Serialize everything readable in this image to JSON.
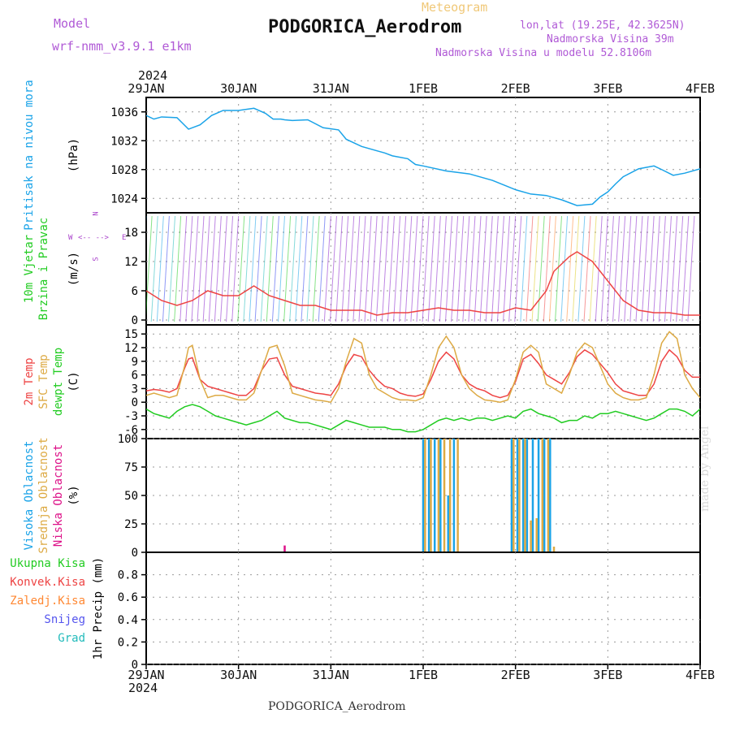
{
  "header": {
    "model_label": "Model",
    "model_name": "wrf-nmm_v3.9.1 e1km",
    "product": "Meteogram",
    "station": "PODGORICA_Aerodrom",
    "lonlat": "lon,lat (19.25E, 42.3625N)",
    "elevation": "Nadmorska Visina 39m",
    "model_elevation": "Nadmorska Visina u modelu 52.8106m",
    "year": "2024",
    "footer_station": "PODGORICA_Aerodrom",
    "credit": "made by Angel"
  },
  "colors": {
    "pressure": "#1aa3e8",
    "temp2m": "#ee4444",
    "sfc_temp": "#ddaa44",
    "dewpt": "#22cc22",
    "cloud_high": "#1aa3e8",
    "cloud_mid": "#ddaa44",
    "cloud_low": "#dd1188",
    "wind_label": "#22cc22",
    "compass": "#aa44cc"
  },
  "compass": {
    "n": "N",
    "w": "W",
    "e": "E",
    "s": "S"
  },
  "chart_data": [
    {
      "type": "line",
      "panel": "pressure",
      "ylabel_lines": [
        "Pritisak na nivou mora"
      ],
      "unit": "(hPa)",
      "x_ticks": [
        "29JAN",
        "30JAN",
        "31JAN",
        "1FEB",
        "2FEB",
        "3FEB",
        "4FEB"
      ],
      "x_range_hours": [
        0,
        144
      ],
      "ylim": [
        1022,
        1038
      ],
      "yticks": [
        1024,
        1028,
        1032,
        1036
      ],
      "series": [
        {
          "x": [
            0,
            2,
            4,
            8,
            11,
            14,
            17,
            20,
            24,
            28,
            31,
            33,
            35,
            36,
            38,
            42,
            46,
            50,
            52,
            56,
            60,
            62,
            64,
            68,
            70,
            72,
            78,
            84,
            90,
            96,
            100,
            104,
            108,
            112,
            116,
            118,
            120,
            122,
            124,
            128,
            132,
            134,
            137,
            140,
            144
          ],
          "y": [
            1035.5,
            1035.0,
            1035.3,
            1035.2,
            1033.6,
            1034.2,
            1035.5,
            1036.2,
            1036.2,
            1036.5,
            1035.8,
            1035.0,
            1035.0,
            1034.9,
            1034.8,
            1034.9,
            1033.8,
            1033.5,
            1032.2,
            1031.2,
            1030.6,
            1030.3,
            1029.9,
            1029.5,
            1028.7,
            1028.5,
            1027.8,
            1027.4,
            1026.5,
            1025.2,
            1024.6,
            1024.4,
            1023.8,
            1023.0,
            1023.2,
            1024.2,
            1024.9,
            1026.0,
            1027.0,
            1028.1,
            1028.5,
            1028.0,
            1027.2,
            1027.5,
            1028.1
          ]
        }
      ]
    },
    {
      "type": "line",
      "panel": "wind",
      "ylabel_lines": [
        "10m Vjetar",
        "Brzina i Pravac"
      ],
      "unit": "(m/s)",
      "ylim": [
        -1,
        22
      ],
      "yticks": [
        0,
        6,
        12,
        18
      ],
      "series": [
        {
          "name": "wind speed",
          "x": [
            0,
            4,
            8,
            12,
            16,
            20,
            24,
            28,
            32,
            36,
            40,
            44,
            48,
            52,
            56,
            60,
            64,
            68,
            72,
            76,
            80,
            84,
            88,
            92,
            96,
            100,
            104,
            106,
            110,
            112,
            116,
            120,
            124,
            128,
            132,
            136,
            140,
            144
          ],
          "y": [
            6,
            4,
            3,
            4,
            6,
            5,
            5,
            7,
            5,
            4,
            3,
            3,
            2,
            2,
            2,
            1,
            1.5,
            1.5,
            2,
            2.5,
            2,
            2,
            1.5,
            1.5,
            2.5,
            2,
            6,
            10,
            13,
            14,
            12,
            8,
            4,
            2,
            1.5,
            1.5,
            1,
            1
          ]
        }
      ]
    },
    {
      "type": "line",
      "panel": "temperature",
      "ylabel_lines": [
        "2m Temp",
        "SFC Temp",
        "dewpt Temp"
      ],
      "unit": "(C)",
      "ylim": [
        -8,
        17
      ],
      "yticks": [
        -6,
        -3,
        0,
        3,
        6,
        9,
        12,
        15
      ],
      "series": [
        {
          "name": "2m Temp",
          "x": [
            0,
            2,
            4,
            6,
            8,
            10,
            11,
            12,
            14,
            16,
            18,
            20,
            22,
            24,
            26,
            28,
            30,
            32,
            34,
            36,
            38,
            40,
            42,
            44,
            46,
            48,
            50,
            52,
            54,
            56,
            58,
            60,
            62,
            64,
            66,
            68,
            70,
            72,
            74,
            76,
            78,
            80,
            82,
            84,
            86,
            88,
            90,
            92,
            94,
            96,
            98,
            100,
            102,
            104,
            106,
            108,
            110,
            112,
            114,
            116,
            118,
            120,
            122,
            124,
            126,
            128,
            130,
            132,
            134,
            136,
            138,
            140,
            142,
            144
          ],
          "y": [
            2.5,
            2.8,
            2.6,
            2.2,
            3.0,
            7.5,
            9.5,
            9.8,
            5.0,
            3.5,
            3.0,
            2.5,
            2.0,
            1.5,
            1.5,
            3.0,
            7.0,
            9.5,
            9.8,
            6.0,
            3.5,
            3.0,
            2.5,
            2.0,
            1.8,
            1.5,
            4.0,
            8.0,
            10.5,
            10.0,
            7.0,
            5.0,
            3.5,
            3.0,
            2.0,
            1.5,
            1.3,
            1.8,
            5.0,
            9.0,
            11.0,
            9.5,
            6.0,
            4.0,
            3.0,
            2.5,
            1.5,
            1.0,
            1.5,
            4.5,
            9.5,
            10.5,
            8.5,
            6.0,
            5.0,
            4.0,
            6.5,
            10.0,
            11.5,
            10.5,
            8.5,
            6.5,
            4.0,
            2.5,
            2.0,
            1.5,
            1.5,
            4.0,
            9.0,
            11.5,
            10.0,
            7.0,
            5.5,
            5.5
          ]
        },
        {
          "name": "SFC Temp",
          "x": [
            0,
            2,
            4,
            6,
            8,
            10,
            11,
            12,
            14,
            16,
            18,
            20,
            22,
            24,
            26,
            28,
            30,
            32,
            34,
            36,
            38,
            40,
            42,
            44,
            46,
            48,
            50,
            52,
            54,
            56,
            58,
            60,
            62,
            64,
            66,
            68,
            70,
            72,
            74,
            76,
            78,
            80,
            82,
            84,
            86,
            88,
            90,
            92,
            94,
            96,
            98,
            100,
            102,
            104,
            106,
            108,
            110,
            112,
            114,
            116,
            118,
            120,
            122,
            124,
            126,
            128,
            130,
            132,
            134,
            136,
            138,
            140,
            142,
            144
          ],
          "y": [
            1.5,
            2.0,
            1.5,
            1.0,
            1.5,
            8.0,
            12.0,
            12.5,
            5.0,
            1.0,
            1.5,
            1.5,
            1.0,
            0.5,
            0.5,
            2.0,
            7.0,
            12.0,
            12.5,
            8.0,
            2.0,
            1.5,
            1.0,
            0.5,
            0.3,
            0.0,
            3.0,
            9.0,
            14.0,
            13.0,
            6.0,
            3.0,
            2.0,
            1.0,
            0.5,
            0.5,
            0.3,
            1.0,
            6.0,
            12.0,
            14.5,
            12.0,
            6.0,
            3.0,
            1.5,
            0.5,
            0.3,
            0.0,
            0.5,
            5.0,
            11.0,
            12.5,
            11.0,
            4.0,
            3.0,
            2.0,
            6.0,
            11.0,
            13.0,
            12.0,
            8.0,
            4.0,
            2.0,
            1.0,
            0.5,
            0.5,
            1.0,
            6.0,
            13.0,
            15.5,
            14.0,
            6.0,
            3.0,
            1.0
          ]
        },
        {
          "name": "dewpt Temp",
          "x": [
            0,
            2,
            4,
            6,
            8,
            10,
            12,
            14,
            16,
            18,
            20,
            22,
            24,
            26,
            28,
            30,
            32,
            34,
            36,
            38,
            40,
            42,
            44,
            46,
            48,
            50,
            52,
            54,
            56,
            58,
            60,
            62,
            64,
            66,
            68,
            70,
            72,
            74,
            76,
            78,
            80,
            82,
            84,
            86,
            88,
            90,
            92,
            94,
            96,
            98,
            100,
            102,
            104,
            106,
            108,
            110,
            112,
            114,
            116,
            118,
            120,
            122,
            124,
            126,
            128,
            130,
            132,
            134,
            136,
            138,
            140,
            142,
            144
          ],
          "y": [
            -1.5,
            -2.5,
            -3.0,
            -3.5,
            -2.0,
            -1.0,
            -0.5,
            -1.0,
            -2.0,
            -3.0,
            -3.5,
            -4.0,
            -4.5,
            -5.0,
            -4.5,
            -4.0,
            -3.0,
            -2.0,
            -3.5,
            -4.0,
            -4.5,
            -4.5,
            -5.0,
            -5.5,
            -6.0,
            -5.0,
            -4.0,
            -4.5,
            -5.0,
            -5.5,
            -5.5,
            -5.5,
            -6.0,
            -6.0,
            -6.5,
            -6.5,
            -6.0,
            -5.0,
            -4.0,
            -3.5,
            -4.0,
            -3.5,
            -4.0,
            -3.5,
            -3.5,
            -4.0,
            -3.5,
            -3.0,
            -3.5,
            -2.0,
            -1.5,
            -2.5,
            -3.0,
            -3.5,
            -4.5,
            -4.0,
            -4.0,
            -3.0,
            -3.5,
            -2.5,
            -2.5,
            -2.0,
            -2.5,
            -3.0,
            -3.5,
            -4.0,
            -3.5,
            -2.5,
            -1.5,
            -1.5,
            -2.0,
            -3.0,
            -1.5
          ]
        }
      ]
    },
    {
      "type": "bar",
      "panel": "cloud",
      "ylabel_lines": [
        "Visoka Oblacnost",
        "Srednja Oblacnost",
        "Niska Oblacnost"
      ],
      "unit": "(%)",
      "ylim": [
        0,
        100
      ],
      "yticks": [
        0,
        25,
        50,
        75,
        100
      ],
      "series": [
        {
          "name": "Visoka Oblacnost",
          "x": [
            72,
            73.5,
            75,
            76.5,
            78.5,
            80,
            95,
            96.5,
            98,
            99,
            100.5,
            102,
            103.5,
            105
          ],
          "y": [
            100,
            100,
            100,
            100,
            50,
            100,
            100,
            100,
            100,
            100,
            100,
            100,
            100,
            100
          ]
        },
        {
          "name": "Srednja Oblacnost",
          "x": [
            72.5,
            74,
            76,
            77.5,
            79,
            81,
            95.5,
            97,
            98.5,
            100,
            101.5,
            103,
            104.5,
            106
          ],
          "y": [
            100,
            100,
            100,
            100,
            100,
            100,
            100,
            100,
            100,
            28,
            30,
            100,
            100,
            5
          ]
        },
        {
          "name": "Niska Oblacnost",
          "x": [
            36
          ],
          "y": [
            6
          ]
        }
      ]
    },
    {
      "type": "line",
      "panel": "precip",
      "ylabel_lines": [
        "Ukupna Kisa",
        "Konvek.Kisa",
        "Zaledj.Kisa",
        "Snijeg",
        "Grad"
      ],
      "unit": "1hr Precip (mm)",
      "x_ticks": [
        "29JAN",
        "30JAN",
        "31JAN",
        "1FEB",
        "2FEB",
        "3FEB",
        "4FEB"
      ],
      "ylim": [
        0,
        1
      ],
      "yticks": [
        0,
        0.2,
        0.4,
        0.6,
        0.8
      ],
      "series": []
    }
  ]
}
